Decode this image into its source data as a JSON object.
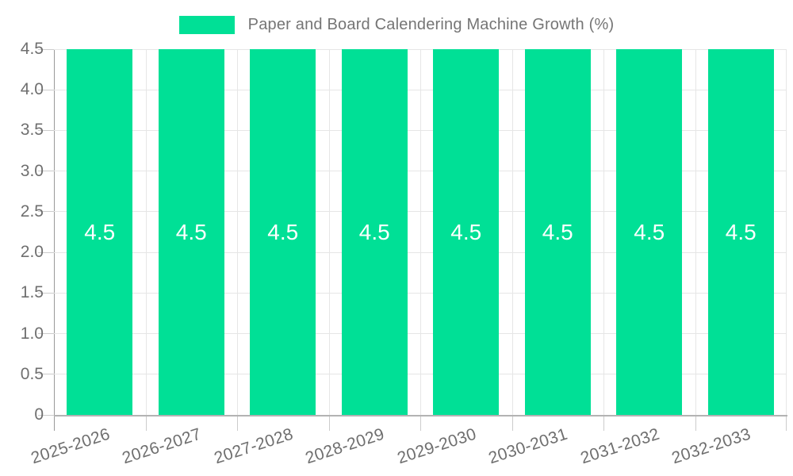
{
  "chart_data": {
    "type": "bar",
    "title": "Paper and Board Calendering Machine Growth (%)",
    "categories": [
      "2025-2026",
      "2026-2027",
      "2027-2028",
      "2028-2029",
      "2029-2030",
      "2030-2031",
      "2031-2032",
      "2032-2033"
    ],
    "values": [
      4.5,
      4.5,
      4.5,
      4.5,
      4.5,
      4.5,
      4.5,
      4.5
    ],
    "bar_labels": [
      "4.5",
      "4.5",
      "4.5",
      "4.5",
      "4.5",
      "4.5",
      "4.5",
      "4.5"
    ],
    "xlabel": "",
    "ylabel": "",
    "ylim": [
      0,
      4.5
    ],
    "ytick_values": [
      0,
      0.5,
      1.0,
      1.5,
      2.0,
      2.5,
      3.0,
      3.5,
      4.0,
      4.5
    ],
    "ytick_labels": [
      "0",
      "0.5",
      "1.0",
      "1.5",
      "2.0",
      "2.5",
      "3.0",
      "3.5",
      "4.0",
      "4.5"
    ],
    "x_tick_rotation_deg": -18,
    "grid": true,
    "legend_position": "top"
  },
  "legend": {
    "label": "Paper and Board Calendering Machine Growth (%)"
  },
  "colors": {
    "bar": "#00E096",
    "bar_label": "#ffffff",
    "gridline": "#e6e6e6",
    "tick": "#cccccc",
    "y_axis_line": "#9a9a9a",
    "x_axis_line": "#b3b3b3",
    "axis_text": "#6f6f6f",
    "legend_text": "#757575"
  }
}
